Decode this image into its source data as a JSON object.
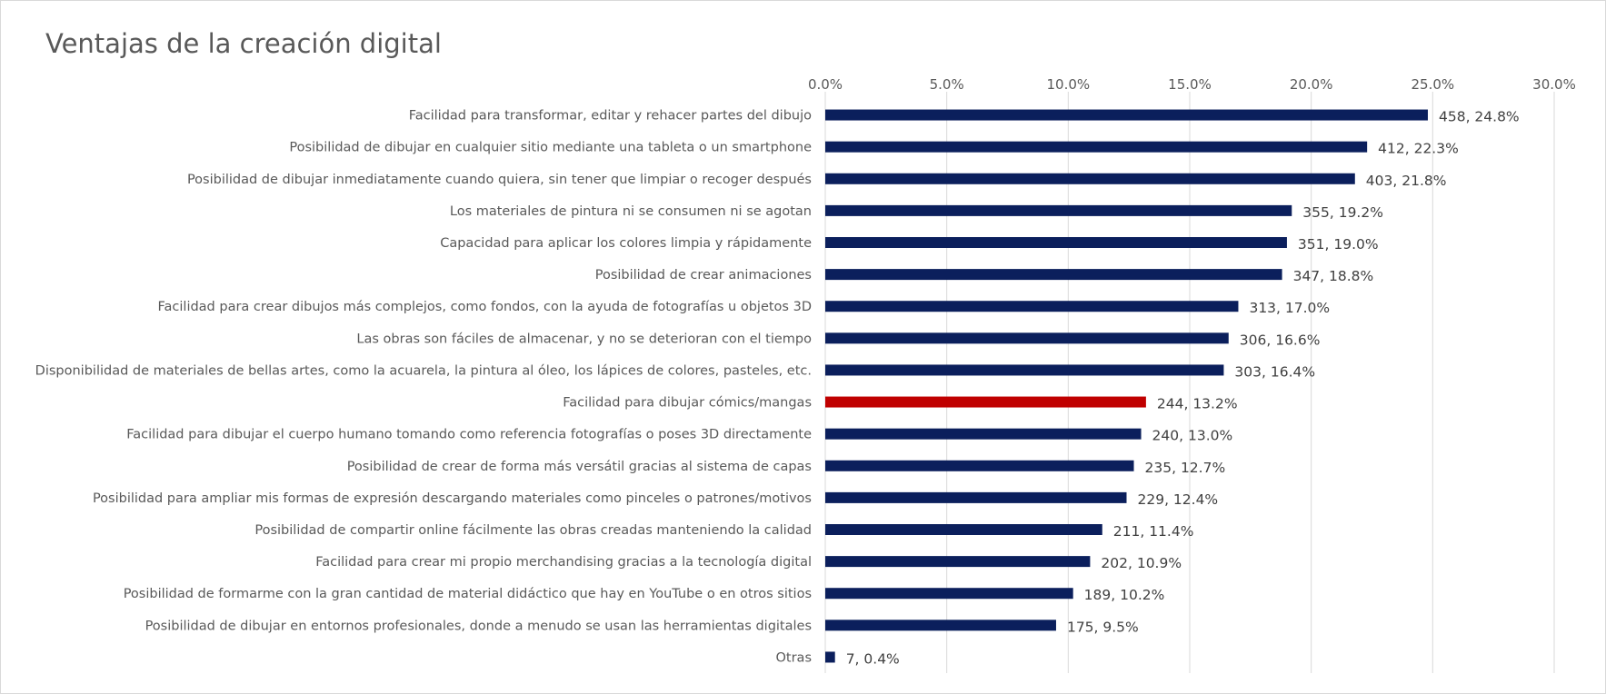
{
  "chart_data": {
    "type": "bar",
    "orientation": "horizontal",
    "title": "Ventajas de la creación digital",
    "xlim": [
      0,
      30
    ],
    "x_ticks": [
      "0.0%",
      "5.0%",
      "10.0%",
      "15.0%",
      "20.0%",
      "25.0%",
      "30.0%"
    ],
    "x_tick_values": [
      0,
      5,
      10,
      15,
      20,
      25,
      30
    ],
    "grid": true,
    "legend": "none",
    "colors": {
      "default": "#0b1f5c",
      "highlight": "#c00000",
      "grid": "#d9d9d9"
    },
    "categories": [
      "Facilidad para transformar, editar y rehacer partes del dibujo",
      "Posibilidad de dibujar en cualquier sitio mediante una tableta o un smartphone",
      "Posibilidad de dibujar inmediatamente cuando quiera, sin tener que limpiar o recoger después",
      "Los materiales de pintura ni se consumen ni se agotan",
      "Capacidad para aplicar los colores limpia y rápidamente",
      "Posibilidad de crear animaciones",
      "Facilidad para crear dibujos más complejos, como fondos, con la ayuda de fotografías u objetos 3D",
      "Las obras son fáciles de almacenar, y no se deterioran con el tiempo",
      "Disponibilidad de materiales de bellas artes, como la acuarela, la pintura al óleo, los lápices de colores, pasteles, etc.",
      "Facilidad para dibujar cómics/mangas",
      "Facilidad para dibujar el cuerpo humano tomando como referencia fotografías o poses 3D directamente",
      "Posibilidad de crear de forma más versátil gracias al sistema de capas",
      "Posibilidad para ampliar mis formas de expresión descargando materiales como pinceles o patrones/motivos",
      "Posibilidad de compartir online fácilmente las obras creadas manteniendo la calidad",
      "Facilidad para crear mi propio merchandising gracias a la tecnología digital",
      "Posibilidad de formarme con la gran cantidad de material didáctico que hay en YouTube o en otros sitios",
      "Posibilidad de dibujar en entornos profesionales, donde a menudo se usan las herramientas digitales",
      "Otras"
    ],
    "values": [
      24.8,
      22.3,
      21.8,
      19.2,
      19.0,
      18.8,
      17.0,
      16.6,
      16.4,
      13.2,
      13.0,
      12.7,
      12.4,
      11.4,
      10.9,
      10.2,
      9.5,
      0.4
    ],
    "counts": [
      458,
      412,
      403,
      355,
      351,
      347,
      313,
      306,
      303,
      244,
      240,
      235,
      229,
      211,
      202,
      189,
      175,
      7
    ],
    "data_labels": [
      "458, 24.8%",
      "412, 22.3%",
      "403, 21.8%",
      "355, 19.2%",
      "351, 19.0%",
      "347, 18.8%",
      "313, 17.0%",
      "306, 16.6%",
      "303, 16.4%",
      "244, 13.2%",
      "240, 13.0%",
      "235, 12.7%",
      "229, 12.4%",
      "211, 11.4%",
      "202, 10.9%",
      "189, 10.2%",
      "175, 9.5%",
      "7, 0.4%"
    ],
    "highlight_index": 9
  }
}
